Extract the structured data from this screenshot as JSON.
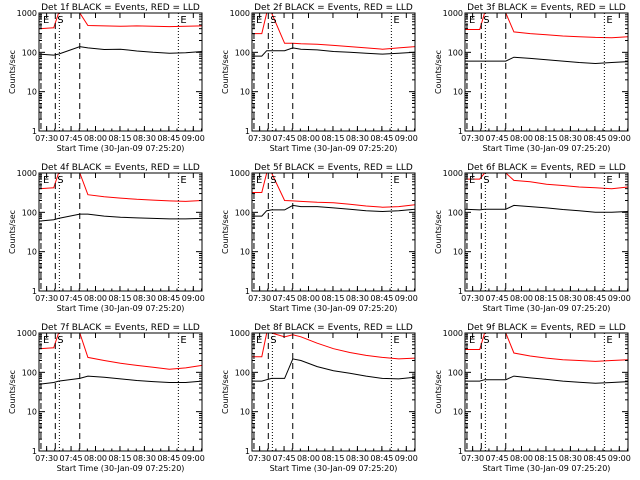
{
  "shared": {
    "ylabel": "Counts/sec",
    "xlabel": "Start Time (30-Jan-09 07:25:20)",
    "x_tick_labels": [
      "07:30",
      "07:45",
      "08:00",
      "08:15",
      "08:30",
      "08:45",
      "09:00"
    ],
    "x_tick_minutes": [
      4.67,
      19.67,
      34.67,
      49.67,
      64.67,
      79.67,
      94.67
    ],
    "xlim_minutes": [
      0,
      100
    ],
    "y_tick_labels": [
      "1",
      "10",
      "100",
      "1000"
    ],
    "y_tick_values": [
      1,
      10,
      100,
      1000
    ],
    "ylim": [
      1,
      1000
    ],
    "yscale": "log",
    "markers": [
      {
        "label": "E",
        "minute": 1.2,
        "style": "dashed"
      },
      {
        "label": "S",
        "minute": 10.0,
        "style": "dashed"
      },
      {
        "label": "",
        "minute": 12.5,
        "style": "dotted"
      },
      {
        "label": "",
        "minute": 25.0,
        "style": "dashed"
      },
      {
        "label": "E",
        "minute": 85.5,
        "style": "dotted"
      }
    ],
    "colors": {
      "events": "#000000",
      "lld": "#ff0000",
      "axes": "#000000"
    }
  },
  "chart_data": [
    {
      "type": "line",
      "title": "Det 1f BLACK = Events, RED = LLD",
      "series": [
        {
          "name": "Events",
          "color": "#000000",
          "x": [
            0,
            9,
            12,
            25,
            30,
            40,
            50,
            60,
            70,
            80,
            90,
            100
          ],
          "y": [
            90,
            85,
            90,
            140,
            130,
            118,
            120,
            108,
            100,
            95,
            98,
            105
          ]
        },
        {
          "name": "LLD",
          "color": "#ff0000",
          "x": [
            0,
            9,
            12,
            25,
            30,
            40,
            50,
            60,
            70,
            80,
            90,
            100
          ],
          "y": [
            400,
            420,
            1000,
            1000,
            480,
            470,
            460,
            470,
            460,
            450,
            460,
            470
          ]
        }
      ]
    },
    {
      "type": "line",
      "title": "Det 2f BLACK = Events, RED = LLD",
      "series": [
        {
          "name": "Events",
          "color": "#000000",
          "x": [
            0,
            6,
            9,
            12,
            20,
            25,
            30,
            40,
            50,
            60,
            70,
            80,
            90,
            100
          ],
          "y": [
            80,
            80,
            110,
            110,
            110,
            130,
            120,
            115,
            105,
            100,
            95,
            90,
            95,
            100
          ]
        },
        {
          "name": "LLD",
          "color": "#ff0000",
          "x": [
            0,
            6,
            9,
            12,
            20,
            25,
            30,
            40,
            50,
            60,
            70,
            80,
            90,
            100
          ],
          "y": [
            300,
            300,
            1000,
            1000,
            170,
            170,
            165,
            160,
            150,
            140,
            130,
            120,
            130,
            140
          ]
        }
      ]
    },
    {
      "type": "line",
      "title": "Det 3f BLACK = Events, RED = LLD",
      "series": [
        {
          "name": "Events",
          "color": "#000000",
          "x": [
            0,
            9,
            12,
            25,
            30,
            40,
            50,
            60,
            70,
            80,
            90,
            100
          ],
          "y": [
            60,
            60,
            60,
            60,
            75,
            70,
            65,
            60,
            55,
            52,
            55,
            58
          ]
        },
        {
          "name": "LLD",
          "color": "#ff0000",
          "x": [
            0,
            9,
            12,
            25,
            30,
            40,
            50,
            60,
            70,
            80,
            90,
            100
          ],
          "y": [
            380,
            380,
            1000,
            1000,
            330,
            300,
            280,
            260,
            250,
            240,
            235,
            250
          ]
        }
      ]
    },
    {
      "type": "line",
      "title": "Det 4f BLACK = Events, RED = LLD",
      "series": [
        {
          "name": "Events",
          "color": "#000000",
          "x": [
            0,
            9,
            12,
            25,
            30,
            40,
            50,
            60,
            70,
            80,
            90,
            100
          ],
          "y": [
            60,
            65,
            70,
            90,
            90,
            80,
            75,
            72,
            70,
            68,
            68,
            70
          ]
        },
        {
          "name": "LLD",
          "color": "#ff0000",
          "x": [
            0,
            9,
            12,
            25,
            30,
            40,
            50,
            60,
            70,
            80,
            90,
            100
          ],
          "y": [
            400,
            420,
            1000,
            1000,
            280,
            250,
            230,
            215,
            205,
            195,
            190,
            200
          ]
        }
      ]
    },
    {
      "type": "line",
      "title": "Det 5f BLACK = Events, RED = LLD",
      "series": [
        {
          "name": "Events",
          "color": "#000000",
          "x": [
            0,
            6,
            9,
            12,
            20,
            25,
            30,
            40,
            50,
            60,
            70,
            80,
            90,
            100
          ],
          "y": [
            80,
            80,
            110,
            115,
            115,
            150,
            140,
            140,
            130,
            120,
            110,
            105,
            110,
            120
          ]
        },
        {
          "name": "LLD",
          "color": "#ff0000",
          "x": [
            0,
            6,
            9,
            12,
            20,
            25,
            30,
            40,
            50,
            60,
            70,
            80,
            90,
            100
          ],
          "y": [
            320,
            320,
            1000,
            1000,
            200,
            195,
            190,
            180,
            175,
            160,
            145,
            135,
            140,
            155
          ]
        }
      ]
    },
    {
      "type": "line",
      "title": "Det 6f BLACK = Events, RED = LLD",
      "series": [
        {
          "name": "Events",
          "color": "#000000",
          "x": [
            0,
            9,
            12,
            25,
            30,
            40,
            50,
            60,
            70,
            80,
            90,
            100
          ],
          "y": [
            120,
            115,
            120,
            120,
            150,
            140,
            130,
            118,
            110,
            100,
            100,
            105
          ]
        },
        {
          "name": "LLD",
          "color": "#ff0000",
          "x": [
            0,
            9,
            12,
            25,
            30,
            40,
            50,
            60,
            70,
            80,
            90,
            100
          ],
          "y": [
            700,
            700,
            1000,
            1000,
            650,
            600,
            520,
            480,
            440,
            420,
            400,
            440
          ]
        }
      ]
    },
    {
      "type": "line",
      "title": "Det 7f BLACK = Events, RED = LLD",
      "series": [
        {
          "name": "Events",
          "color": "#000000",
          "x": [
            0,
            9,
            12,
            25,
            30,
            40,
            50,
            60,
            70,
            80,
            90,
            100
          ],
          "y": [
            50,
            55,
            60,
            70,
            80,
            75,
            68,
            62,
            58,
            55,
            55,
            60
          ]
        },
        {
          "name": "LLD",
          "color": "#ff0000",
          "x": [
            0,
            9,
            12,
            25,
            30,
            40,
            50,
            60,
            70,
            80,
            90,
            100
          ],
          "y": [
            400,
            420,
            1000,
            1000,
            240,
            200,
            170,
            150,
            135,
            120,
            130,
            150
          ]
        }
      ]
    },
    {
      "type": "line",
      "title": "Det 8f BLACK = Events, RED = LLD",
      "series": [
        {
          "name": "Events",
          "color": "#000000",
          "x": [
            0,
            6,
            9,
            12,
            20,
            25,
            30,
            40,
            50,
            60,
            70,
            80,
            90,
            100
          ],
          "y": [
            60,
            60,
            65,
            70,
            70,
            220,
            200,
            140,
            110,
            95,
            80,
            70,
            68,
            75
          ]
        },
        {
          "name": "LLD",
          "color": "#ff0000",
          "x": [
            0,
            6,
            9,
            12,
            20,
            25,
            30,
            40,
            50,
            60,
            70,
            80,
            90,
            100
          ],
          "y": [
            250,
            250,
            1000,
            1000,
            800,
            900,
            800,
            550,
            400,
            320,
            270,
            240,
            220,
            230
          ]
        }
      ]
    },
    {
      "type": "line",
      "title": "Det 9f BLACK = Events, RED = LLD",
      "series": [
        {
          "name": "Events",
          "color": "#000000",
          "x": [
            0,
            9,
            12,
            25,
            30,
            40,
            50,
            60,
            70,
            80,
            90,
            100
          ],
          "y": [
            60,
            60,
            65,
            65,
            80,
            72,
            66,
            60,
            56,
            53,
            55,
            58
          ]
        },
        {
          "name": "LLD",
          "color": "#ff0000",
          "x": [
            0,
            9,
            12,
            25,
            30,
            40,
            50,
            60,
            70,
            80,
            90,
            100
          ],
          "y": [
            380,
            380,
            1000,
            1000,
            310,
            260,
            230,
            210,
            200,
            190,
            200,
            210
          ]
        }
      ]
    }
  ]
}
